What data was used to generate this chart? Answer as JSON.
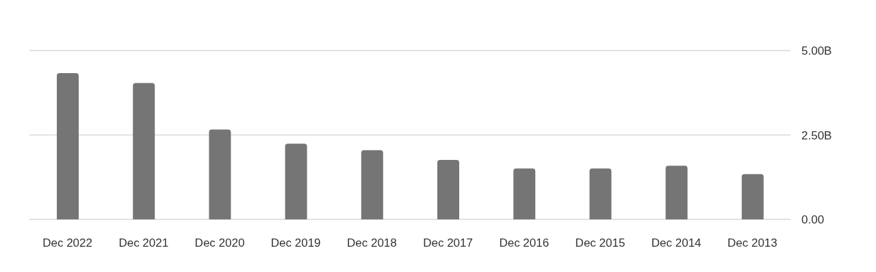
{
  "chart_data": {
    "type": "bar",
    "categories": [
      "Dec 2022",
      "Dec 2021",
      "Dec 2020",
      "Dec 2019",
      "Dec 2018",
      "Dec 2017",
      "Dec 2016",
      "Dec 2015",
      "Dec 2014",
      "Dec 2013"
    ],
    "values": [
      4.33,
      4.04,
      2.66,
      2.24,
      2.05,
      1.76,
      1.51,
      1.51,
      1.59,
      1.34
    ],
    "color": "#757575",
    "ylim": [
      0,
      5
    ],
    "yticks": [
      {
        "value": 0,
        "label": "0.00"
      },
      {
        "value": 2.5,
        "label": "2.50B"
      },
      {
        "value": 5,
        "label": "5.00B"
      }
    ],
    "grid": "y"
  }
}
